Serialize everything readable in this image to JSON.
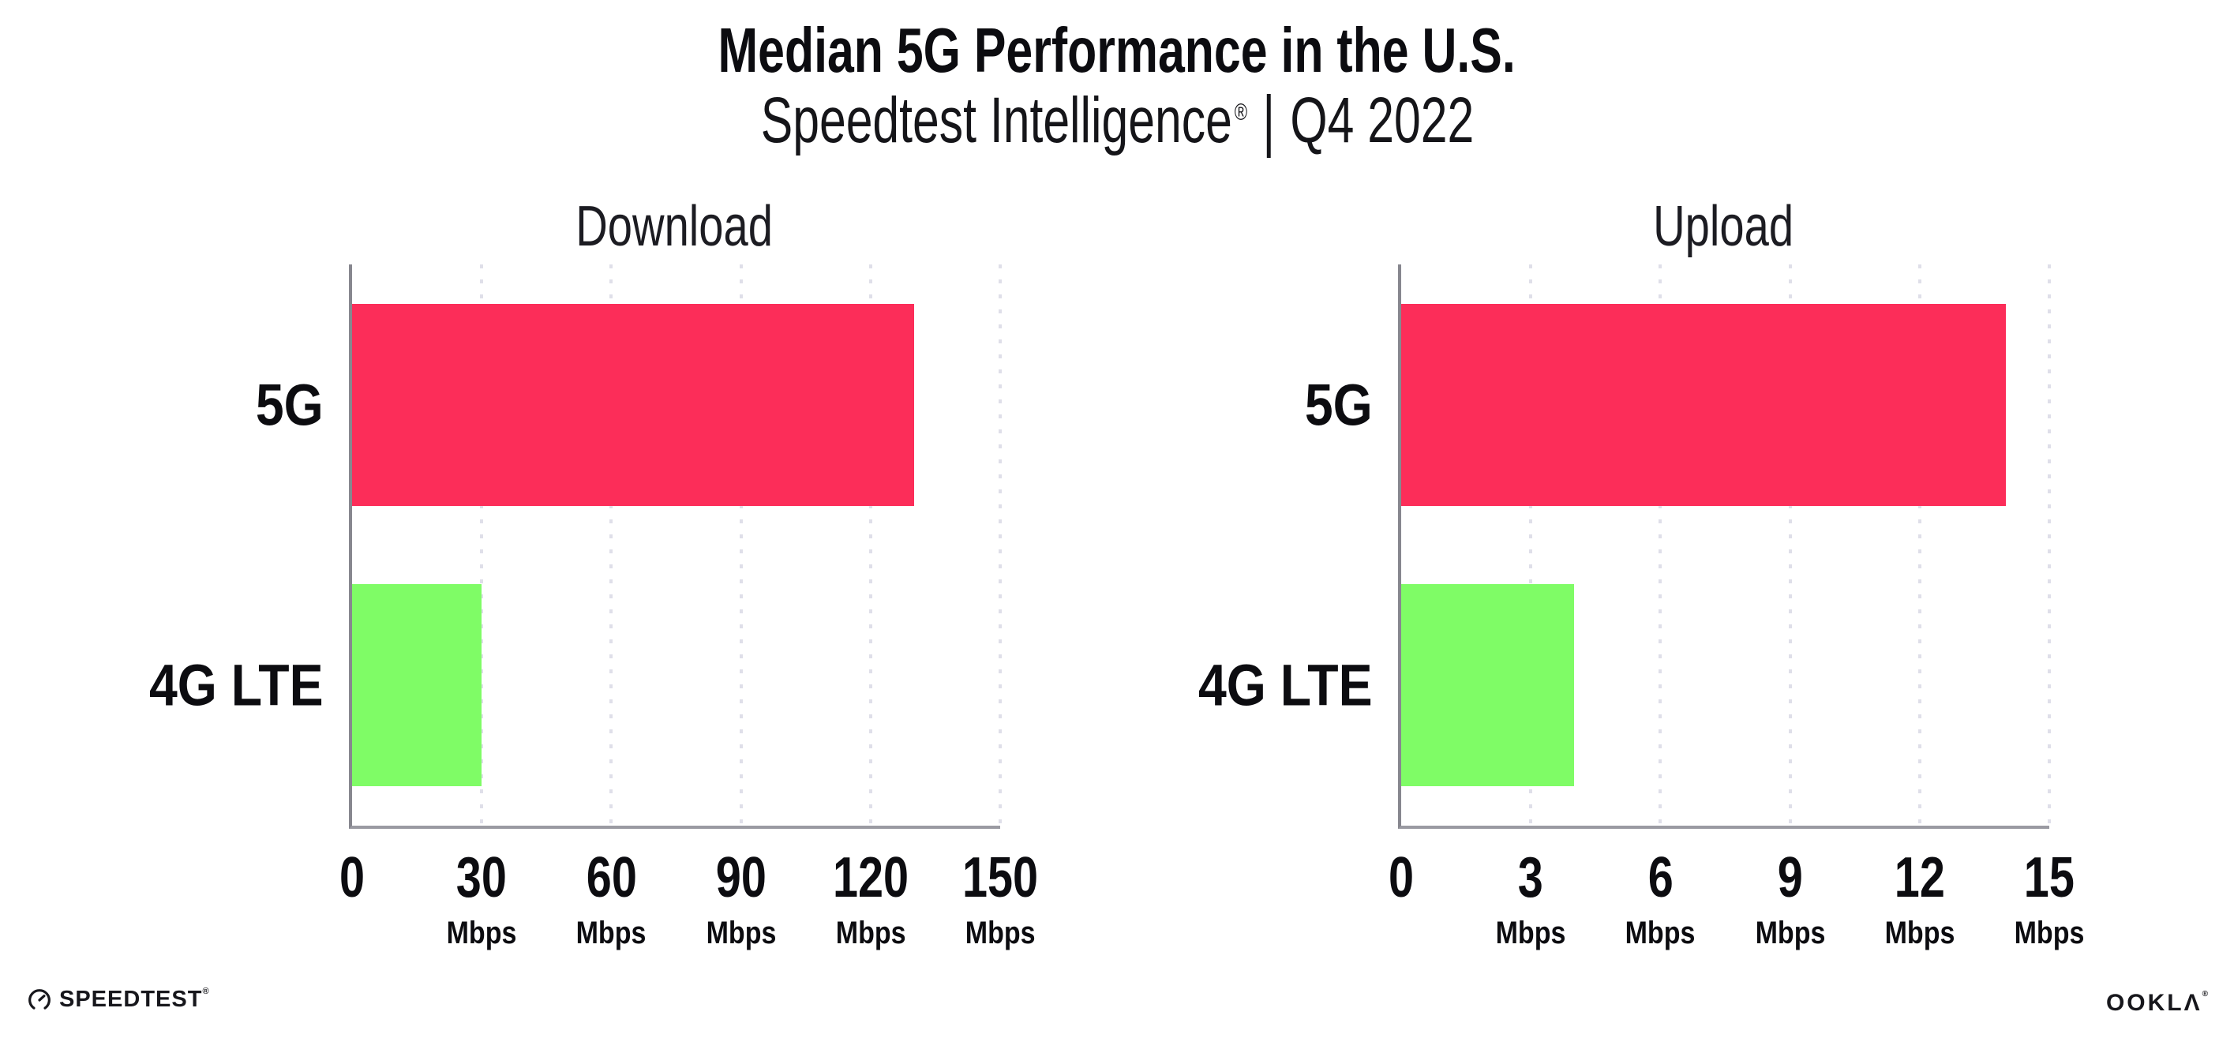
{
  "header": {
    "title": "Median 5G Performance in the U.S.",
    "subtitle_brand": "Speedtest Intelligence",
    "subtitle_reg": "®",
    "subtitle_separator": "|",
    "subtitle_period": "Q4 2022"
  },
  "colors": {
    "bar_5g": "#FC2D59",
    "bar_4g_lte": "#7FFC66",
    "gridline": "#DFDFE9",
    "y_axis": "#87878F",
    "x_axis": "#9A9AA2",
    "text": "#0C0C10"
  },
  "chart_data": [
    {
      "type": "bar",
      "orientation": "horizontal",
      "title": "Download",
      "categories": [
        "5G",
        "4G LTE"
      ],
      "values": [
        130,
        30
      ],
      "unit": "Mbps",
      "xlim": [
        0,
        150
      ],
      "xticks": [
        0,
        30,
        60,
        90,
        120,
        150
      ],
      "tick_unit_label": "Mbps",
      "grid": "dotted-vertical",
      "legend": "none",
      "bar_colors": [
        "#FC2D59",
        "#7FFC66"
      ]
    },
    {
      "type": "bar",
      "orientation": "horizontal",
      "title": "Upload",
      "categories": [
        "5G",
        "4G LTE"
      ],
      "values": [
        14,
        4
      ],
      "unit": "Mbps",
      "xlim": [
        0,
        15
      ],
      "xticks": [
        0,
        3,
        6,
        9,
        12,
        15
      ],
      "tick_unit_label": "Mbps",
      "grid": "dotted-vertical",
      "legend": "none",
      "bar_colors": [
        "#FC2D59",
        "#7FFC66"
      ]
    }
  ],
  "footer": {
    "speedtest_logo_text": "SPEEDTEST",
    "speedtest_trademark": "®",
    "ookla_logo_text": "OOKLΛ",
    "ookla_reg": "®"
  }
}
